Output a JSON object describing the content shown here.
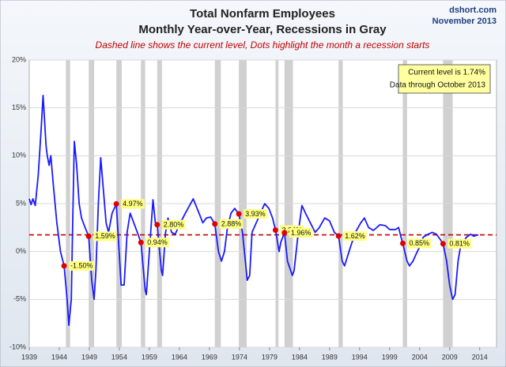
{
  "chart_data": {
    "type": "line",
    "title": "Total Nonfarm Employees",
    "subtitle": "Monthly Year-over-Year, Recessions in Gray",
    "note": "Dashed line shows the current level, Dots highlight the month a recession starts",
    "source": "dshort.com",
    "date": "November 2013",
    "box_lines": [
      "Current level is 1.74%",
      "Data through October 2013"
    ],
    "current_level": 1.74,
    "xlim": [
      1939,
      2016.8
    ],
    "xticks": [
      1939,
      1944,
      1949,
      1954,
      1959,
      1964,
      1969,
      1974,
      1979,
      1984,
      1989,
      1994,
      1999,
      2004,
      2009,
      2014
    ],
    "ylim": [
      -10,
      20
    ],
    "yticks": [
      {
        "value": -10,
        "label": "-10%"
      },
      {
        "value": -5,
        "label": "-5%"
      },
      {
        "value": 0,
        "label": "0%"
      },
      {
        "value": 5,
        "label": "5%"
      },
      {
        "value": 10,
        "label": "10%"
      },
      {
        "value": 15,
        "label": "15%"
      },
      {
        "value": 20,
        "label": "20%"
      }
    ],
    "grid": true,
    "recessions": [
      [
        1945.1,
        1945.8
      ],
      [
        1948.9,
        1949.8
      ],
      [
        1953.5,
        1954.4
      ],
      [
        1957.6,
        1958.3
      ],
      [
        1960.3,
        1961.1
      ],
      [
        1969.9,
        1970.9
      ],
      [
        1973.9,
        1975.2
      ],
      [
        1980.0,
        1980.5
      ],
      [
        1981.5,
        1982.9
      ],
      [
        1990.5,
        1991.2
      ],
      [
        2001.2,
        2001.9
      ],
      [
        2007.9,
        2009.5
      ]
    ],
    "recession_color": "#c8c8c8",
    "recession_starts": {
      "x": [
        1944.8,
        1948.9,
        1953.5,
        1957.6,
        1960.3,
        1969.9,
        1973.9,
        1980.0,
        1981.5,
        1990.5,
        2001.2,
        2007.9
      ],
      "values": [
        -1.5,
        1.59,
        4.97,
        0.94,
        2.8,
        2.88,
        3.93,
        2.24,
        1.96,
        1.62,
        0.85,
        0.81
      ],
      "value_labels": [
        "-1.50%",
        "1.59%",
        "4.97%",
        "0.94%",
        "2.80%",
        "2.88%",
        "3.93%",
        "2.24%",
        "1.96%",
        "1.62%",
        "0.85%",
        "0.81%"
      ],
      "color": "#e00000"
    },
    "series": [
      {
        "color": "#1a1aff",
        "x": [
          1939.0,
          1939.3,
          1939.6,
          1940.0,
          1940.5,
          1941.0,
          1941.3,
          1941.8,
          1942.0,
          1942.3,
          1942.6,
          1943.0,
          1943.6,
          1944.2,
          1944.8,
          1945.3,
          1945.6,
          1946.0,
          1946.2,
          1946.5,
          1946.9,
          1947.3,
          1947.7,
          1948.3,
          1948.9,
          1949.4,
          1949.8,
          1950.1,
          1950.5,
          1950.9,
          1951.4,
          1951.8,
          1952.2,
          1952.8,
          1953.5,
          1954.3,
          1954.8,
          1955.3,
          1955.8,
          1956.4,
          1957.0,
          1957.6,
          1958.3,
          1958.5,
          1959.0,
          1959.6,
          1960.0,
          1960.3,
          1961.0,
          1961.2,
          1961.7,
          1962.1,
          1962.7,
          1963.3,
          1964.0,
          1965.0,
          1966.3,
          1967.4,
          1967.9,
          1968.5,
          1969.2,
          1969.9,
          1970.5,
          1971.0,
          1971.5,
          1972.0,
          1972.6,
          1973.2,
          1973.9,
          1974.5,
          1975.3,
          1975.7,
          1976.1,
          1976.8,
          1977.5,
          1978.2,
          1978.9,
          1979.5,
          1980.0,
          1980.6,
          1980.9,
          1981.5,
          1982.0,
          1982.8,
          1983.1,
          1983.8,
          1984.4,
          1985.0,
          1985.8,
          1986.6,
          1987.3,
          1988.2,
          1989.0,
          1989.8,
          1990.5,
          1991.1,
          1991.5,
          1992.0,
          1992.5,
          1993.3,
          1994.2,
          1994.8,
          1995.5,
          1996.3,
          1997.4,
          1998.3,
          1999.0,
          2000.0,
          2000.5,
          2000.9,
          2001.2,
          2001.9,
          2002.3,
          2002.9,
          2003.4,
          2004.0,
          2004.6,
          2005.4,
          2006.1,
          2006.8,
          2007.5,
          2007.9,
          2008.5,
          2009.0,
          2009.5,
          2009.9,
          2010.4,
          2010.8,
          2011.3,
          2011.8,
          2012.5,
          2013.0,
          2013.5,
          2013.8
        ],
        "values": [
          5.5,
          4.9,
          5.5,
          4.8,
          8,
          13,
          16.3,
          11,
          10,
          9,
          10,
          7,
          3,
          0,
          -1.5,
          -5,
          -7.7,
          -5,
          2,
          11.5,
          9,
          5,
          3.5,
          2.5,
          1.59,
          -3,
          -5,
          -2,
          5,
          9.8,
          6,
          3,
          2,
          4,
          4.97,
          -3.5,
          -3.5,
          2,
          4,
          3,
          2,
          0.94,
          -4,
          -4.5,
          0,
          5.4,
          3,
          2.8,
          -2,
          -2.5,
          2,
          3.5,
          2,
          1.8,
          2.8,
          4,
          5.5,
          3.8,
          3,
          3.5,
          3.6,
          2.88,
          0,
          -1,
          0,
          2.5,
          4,
          4.5,
          3.93,
          2,
          -3,
          -2.5,
          2,
          3,
          4,
          5,
          4.5,
          3.5,
          2.24,
          0,
          1,
          1.96,
          -1,
          -2.5,
          -2,
          2,
          4.8,
          4,
          3,
          2,
          2.5,
          3.5,
          3.2,
          2,
          1.62,
          -1,
          -1.5,
          -0.5,
          0.5,
          2,
          3,
          3.5,
          2.5,
          2.2,
          2.8,
          2.7,
          2.3,
          2.3,
          2.5,
          1.5,
          0.85,
          -1,
          -1.5,
          -1,
          -0.3,
          0.5,
          1.5,
          1.8,
          2,
          1.8,
          1.2,
          0.81,
          -1,
          -3.5,
          -5,
          -4.5,
          -1,
          0.5,
          1,
          1.5,
          1.8,
          1.6,
          1.7,
          1.74
        ]
      }
    ]
  }
}
